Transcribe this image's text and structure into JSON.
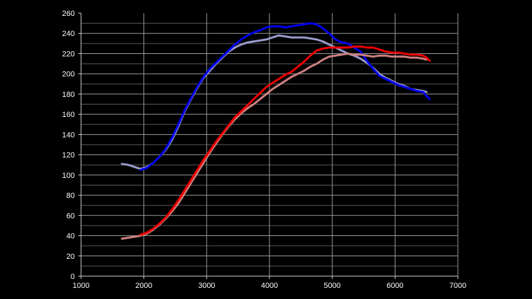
{
  "chart_data": {
    "type": "line",
    "title": "",
    "xlabel": "",
    "ylabel": "",
    "xlim": [
      1000,
      7000
    ],
    "ylim": [
      0,
      260
    ],
    "x_ticks": [
      1000,
      2000,
      3000,
      4000,
      5000,
      6000,
      7000
    ],
    "y_ticks": [
      0,
      20,
      40,
      60,
      80,
      100,
      120,
      140,
      160,
      180,
      200,
      220,
      240,
      260
    ],
    "grid": true,
    "legend": "none",
    "series": [
      {
        "color": "#9a9acc",
        "width": 3,
        "points": [
          [
            1650,
            111
          ],
          [
            1750,
            110
          ],
          [
            1850,
            108
          ],
          [
            1950,
            106
          ],
          [
            2050,
            108
          ],
          [
            2150,
            112
          ],
          [
            2250,
            118
          ],
          [
            2350,
            125
          ],
          [
            2450,
            135
          ],
          [
            2550,
            148
          ],
          [
            2650,
            163
          ],
          [
            2750,
            175
          ],
          [
            2850,
            186
          ],
          [
            2950,
            196
          ],
          [
            3050,
            203
          ],
          [
            3150,
            210
          ],
          [
            3250,
            216
          ],
          [
            3350,
            222
          ],
          [
            3450,
            226
          ],
          [
            3550,
            229
          ],
          [
            3650,
            231
          ],
          [
            3750,
            232
          ],
          [
            3850,
            233
          ],
          [
            3950,
            234
          ],
          [
            4050,
            236
          ],
          [
            4150,
            238
          ],
          [
            4250,
            237
          ],
          [
            4350,
            236
          ],
          [
            4450,
            236
          ],
          [
            4550,
            236
          ],
          [
            4650,
            235
          ],
          [
            4750,
            234
          ],
          [
            4850,
            232
          ],
          [
            4950,
            229
          ],
          [
            5050,
            226
          ],
          [
            5150,
            223
          ],
          [
            5250,
            220
          ],
          [
            5350,
            218
          ],
          [
            5450,
            215
          ],
          [
            5550,
            211
          ],
          [
            5650,
            206
          ],
          [
            5750,
            200
          ],
          [
            5850,
            196
          ],
          [
            5950,
            193
          ],
          [
            6050,
            190
          ],
          [
            6150,
            188
          ],
          [
            6250,
            185
          ],
          [
            6350,
            184
          ],
          [
            6450,
            183
          ],
          [
            6500,
            182
          ]
        ]
      },
      {
        "color": "#0000ee",
        "width": 3,
        "points": [
          [
            1950,
            105
          ],
          [
            2050,
            107
          ],
          [
            2150,
            112
          ],
          [
            2250,
            118
          ],
          [
            2350,
            126
          ],
          [
            2450,
            137
          ],
          [
            2550,
            150
          ],
          [
            2650,
            164
          ],
          [
            2750,
            176
          ],
          [
            2850,
            187
          ],
          [
            2950,
            197
          ],
          [
            3050,
            205
          ],
          [
            3150,
            211
          ],
          [
            3250,
            217
          ],
          [
            3350,
            223
          ],
          [
            3450,
            229
          ],
          [
            3550,
            234
          ],
          [
            3650,
            238
          ],
          [
            3750,
            241
          ],
          [
            3850,
            243
          ],
          [
            3950,
            246
          ],
          [
            4050,
            247
          ],
          [
            4150,
            247
          ],
          [
            4250,
            246
          ],
          [
            4350,
            247
          ],
          [
            4450,
            248
          ],
          [
            4550,
            249
          ],
          [
            4650,
            250
          ],
          [
            4750,
            249
          ],
          [
            4850,
            245
          ],
          [
            4950,
            240
          ],
          [
            5050,
            234
          ],
          [
            5150,
            231
          ],
          [
            5250,
            230
          ],
          [
            5350,
            226
          ],
          [
            5450,
            222
          ],
          [
            5550,
            213
          ],
          [
            5650,
            205
          ],
          [
            5750,
            198
          ],
          [
            5850,
            195
          ],
          [
            5950,
            192
          ],
          [
            6050,
            189
          ],
          [
            6150,
            187
          ],
          [
            6250,
            185
          ],
          [
            6350,
            183
          ],
          [
            6450,
            182
          ],
          [
            6500,
            178
          ],
          [
            6550,
            175
          ]
        ]
      },
      {
        "color": "#cc8080",
        "width": 3,
        "points": [
          [
            1650,
            37
          ],
          [
            1750,
            38
          ],
          [
            1850,
            39
          ],
          [
            1950,
            40
          ],
          [
            2050,
            42
          ],
          [
            2150,
            46
          ],
          [
            2250,
            51
          ],
          [
            2350,
            57
          ],
          [
            2450,
            64
          ],
          [
            2550,
            72
          ],
          [
            2650,
            82
          ],
          [
            2750,
            92
          ],
          [
            2850,
            102
          ],
          [
            2950,
            112
          ],
          [
            3050,
            122
          ],
          [
            3150,
            131
          ],
          [
            3250,
            140
          ],
          [
            3350,
            148
          ],
          [
            3450,
            155
          ],
          [
            3550,
            161
          ],
          [
            3650,
            166
          ],
          [
            3750,
            170
          ],
          [
            3850,
            175
          ],
          [
            3950,
            180
          ],
          [
            4050,
            185
          ],
          [
            4150,
            189
          ],
          [
            4250,
            193
          ],
          [
            4350,
            197
          ],
          [
            4450,
            200
          ],
          [
            4550,
            203
          ],
          [
            4650,
            207
          ],
          [
            4750,
            210
          ],
          [
            4850,
            214
          ],
          [
            4950,
            217
          ],
          [
            5050,
            218
          ],
          [
            5150,
            219
          ],
          [
            5250,
            220
          ],
          [
            5350,
            219
          ],
          [
            5450,
            219
          ],
          [
            5550,
            218
          ],
          [
            5650,
            217
          ],
          [
            5750,
            218
          ],
          [
            5850,
            218
          ],
          [
            5950,
            217
          ],
          [
            6050,
            217
          ],
          [
            6150,
            217
          ],
          [
            6250,
            216
          ],
          [
            6350,
            216
          ],
          [
            6450,
            215
          ],
          [
            6500,
            214
          ]
        ]
      },
      {
        "color": "#ee0000",
        "width": 3,
        "points": [
          [
            1950,
            41
          ],
          [
            2050,
            43
          ],
          [
            2150,
            47
          ],
          [
            2250,
            52
          ],
          [
            2350,
            58
          ],
          [
            2450,
            66
          ],
          [
            2550,
            75
          ],
          [
            2650,
            85
          ],
          [
            2750,
            95
          ],
          [
            2850,
            105
          ],
          [
            2950,
            115
          ],
          [
            3050,
            124
          ],
          [
            3150,
            133
          ],
          [
            3250,
            141
          ],
          [
            3350,
            149
          ],
          [
            3450,
            157
          ],
          [
            3550,
            163
          ],
          [
            3650,
            169
          ],
          [
            3750,
            175
          ],
          [
            3850,
            181
          ],
          [
            3950,
            187
          ],
          [
            4050,
            191
          ],
          [
            4150,
            195
          ],
          [
            4250,
            199
          ],
          [
            4350,
            202
          ],
          [
            4450,
            207
          ],
          [
            4550,
            212
          ],
          [
            4650,
            218
          ],
          [
            4750,
            223
          ],
          [
            4850,
            225
          ],
          [
            4950,
            226
          ],
          [
            5050,
            226
          ],
          [
            5150,
            226
          ],
          [
            5250,
            226
          ],
          [
            5350,
            227
          ],
          [
            5450,
            227
          ],
          [
            5550,
            226
          ],
          [
            5650,
            226
          ],
          [
            5750,
            224
          ],
          [
            5850,
            222
          ],
          [
            5950,
            221
          ],
          [
            6050,
            221
          ],
          [
            6150,
            220
          ],
          [
            6250,
            219
          ],
          [
            6350,
            219
          ],
          [
            6450,
            218
          ],
          [
            6500,
            216
          ],
          [
            6550,
            213
          ]
        ]
      }
    ]
  }
}
